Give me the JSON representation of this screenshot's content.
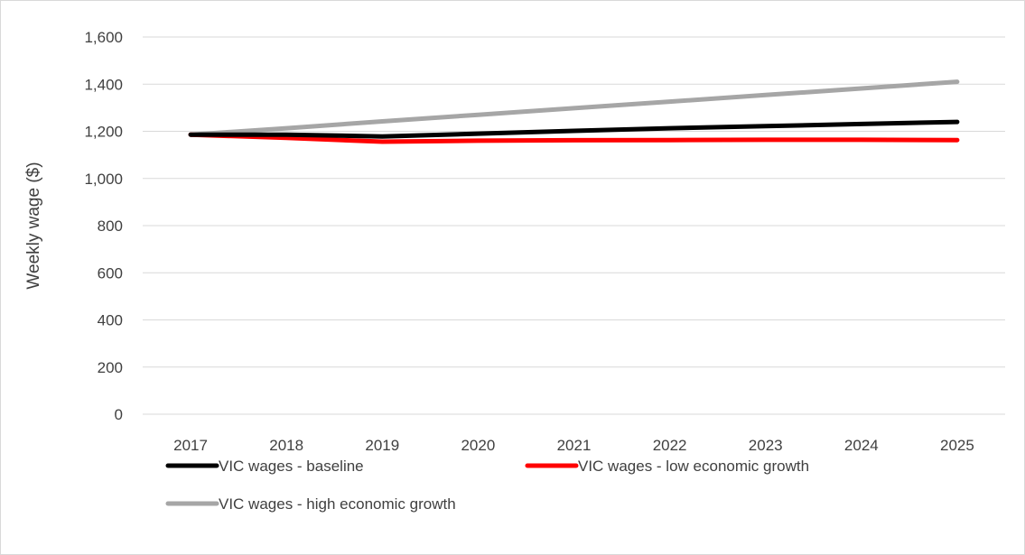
{
  "chart_data": {
    "type": "line",
    "title": "",
    "xlabel": "",
    "ylabel": "Weekly wage ($)",
    "x": [
      "2017",
      "2018",
      "2019",
      "2020",
      "2021",
      "2022",
      "2023",
      "2024",
      "2025"
    ],
    "ylim": [
      0,
      1600
    ],
    "yticks": [
      0,
      200,
      400,
      600,
      800,
      1000,
      1200,
      1400,
      1600
    ],
    "ytick_labels": [
      "0",
      "200",
      "400",
      "600",
      "800",
      "1,000",
      "1,200",
      "1,400",
      "1,600"
    ],
    "grid": true,
    "legend_position": "bottom",
    "series": [
      {
        "name": "VIC wages - baseline",
        "color": "#000000",
        "values": [
          1186,
          1186,
          1178,
          1190,
          1202,
          1213,
          1222,
          1231,
          1240
        ]
      },
      {
        "name": "VIC wages - low economic growth",
        "color": "#ff0000",
        "values": [
          1186,
          1172,
          1156,
          1160,
          1162,
          1163,
          1164,
          1164,
          1163
        ]
      },
      {
        "name": "VIC wages - high economic growth",
        "color": "#a6a6a6",
        "values": [
          1186,
          1213,
          1242,
          1270,
          1298,
          1326,
          1354,
          1382,
          1410
        ]
      }
    ]
  }
}
